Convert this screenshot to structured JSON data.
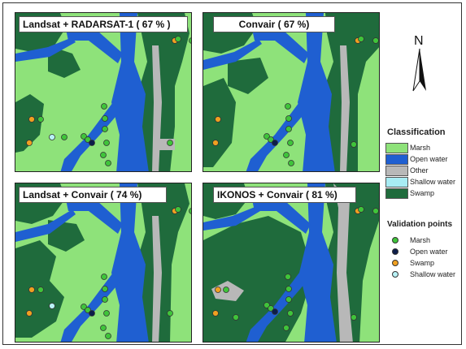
{
  "panels": [
    {
      "title": "Landsat + RADARSAT-1 ( 67 % )"
    },
    {
      "title": "Convair ( 67 %)"
    },
    {
      "title": "Landsat + Convair ( 74 %)"
    },
    {
      "title": "IKONOS + Convair ( 81 %)"
    }
  ],
  "north": {
    "label": "N"
  },
  "classification": {
    "title": "Classification",
    "items": [
      {
        "label": "Marsh",
        "color": "#8ee27a"
      },
      {
        "label": "Open water",
        "color": "#1f5fd1"
      },
      {
        "label": "Other",
        "color": "#b8b8b8"
      },
      {
        "label": "Shallow water",
        "color": "#a8ecf4"
      },
      {
        "label": "Swamp",
        "color": "#1f6b3c"
      }
    ]
  },
  "validation": {
    "title": "Validation points",
    "items": [
      {
        "label": "Marsh",
        "color": "#3fc43a"
      },
      {
        "label": "Open water",
        "color": "#0d1d4a"
      },
      {
        "label": "Swamp",
        "color": "#f0a020"
      },
      {
        "label": "Shallow water",
        "color": "#b8f2f6"
      }
    ]
  }
}
